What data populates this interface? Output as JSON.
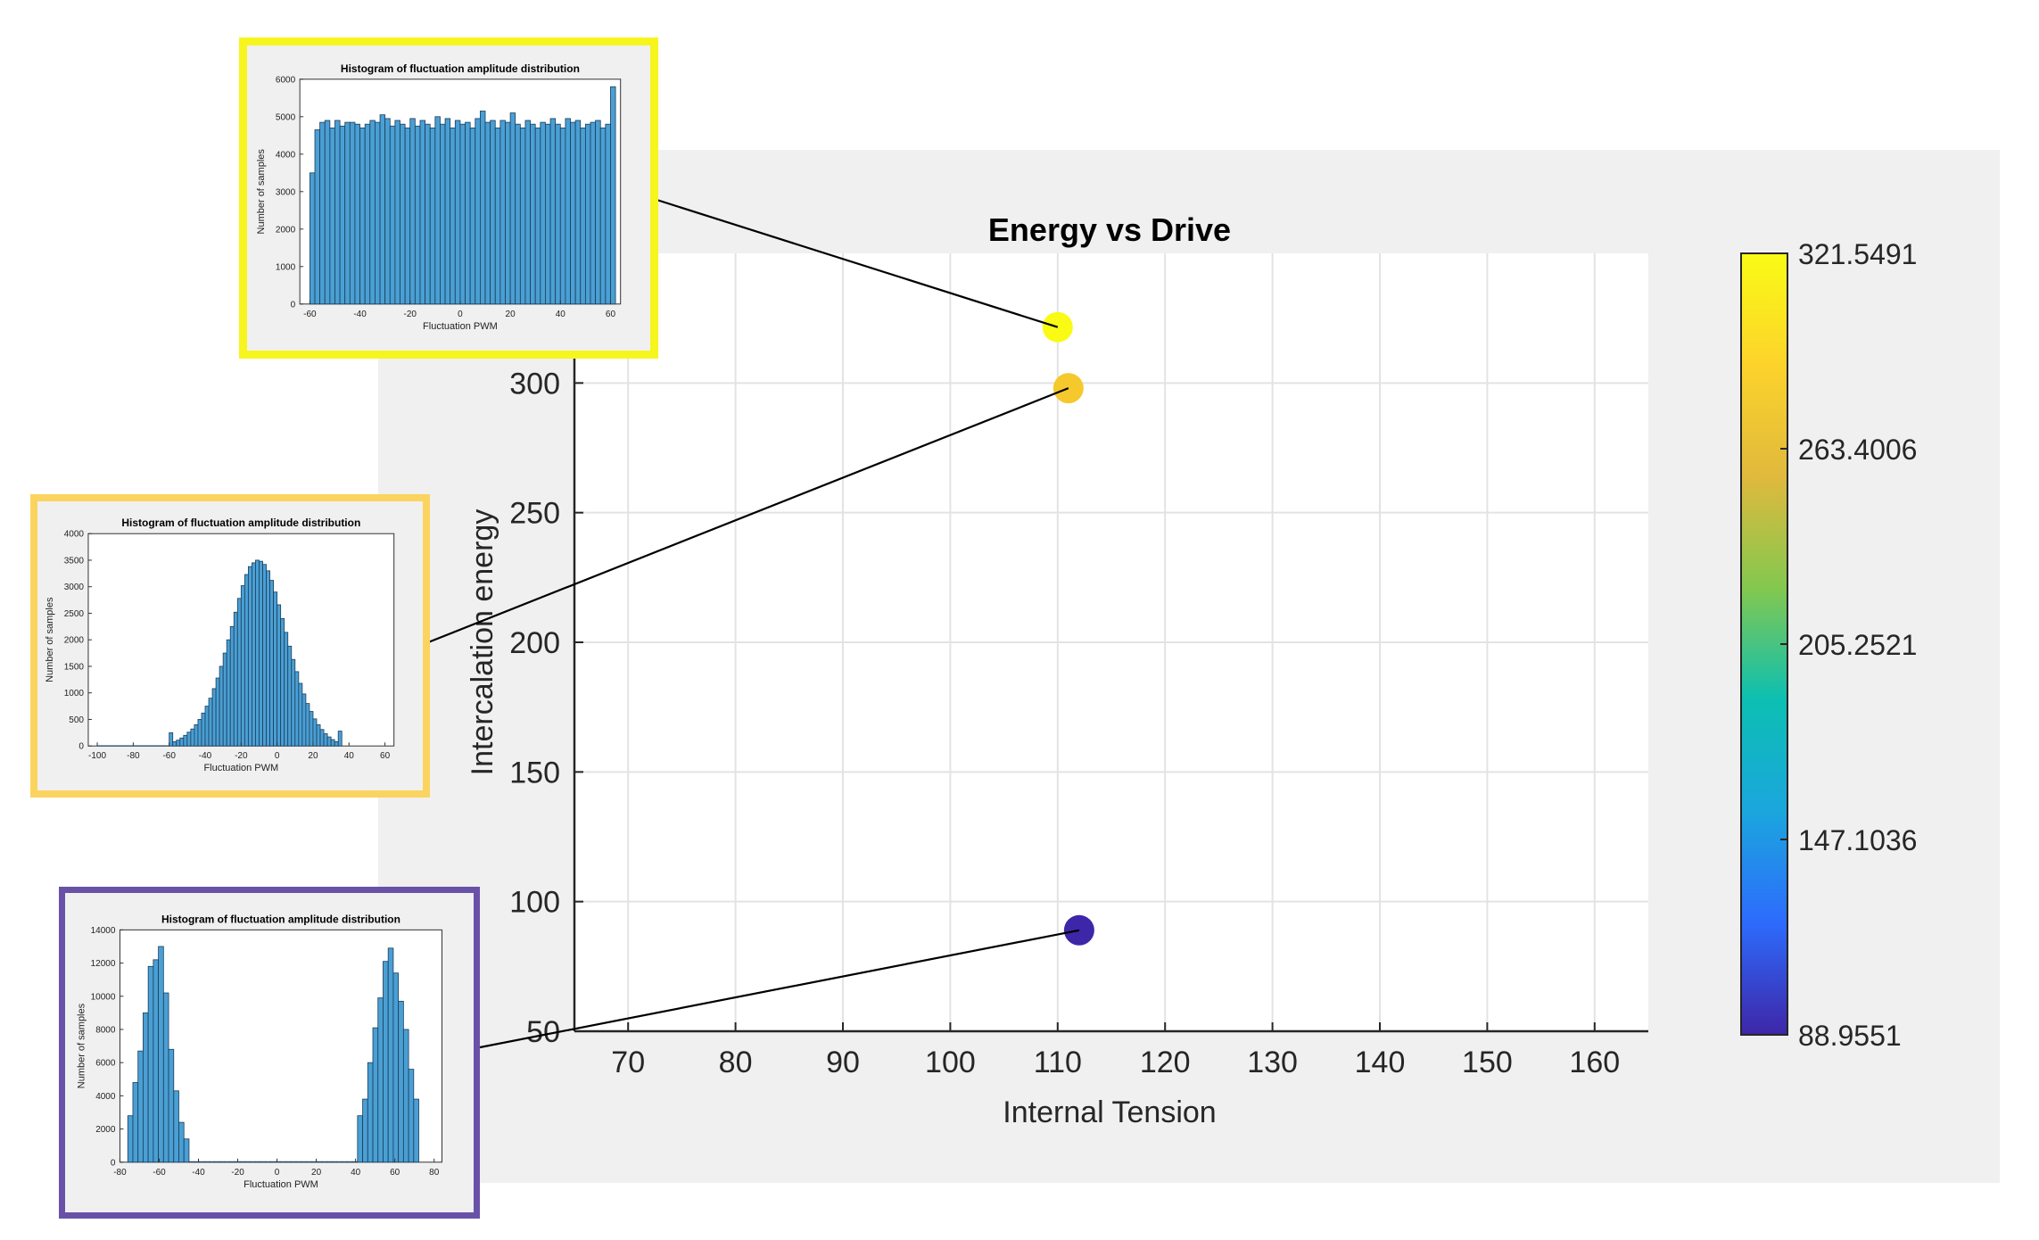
{
  "colors": {
    "panel_bg": "#f0f0f0",
    "grid": "#e3e3e3",
    "axis": "#262626",
    "bar_fill": "#4a9fd3",
    "bar_stroke": "#1a3d5c",
    "colormap": [
      "#3e26a8",
      "#2d6bfc",
      "#1ba6de",
      "#0cbfb2",
      "#83c84f",
      "#e0b93d",
      "#fcd32b",
      "#f9fb15"
    ]
  },
  "chart_data": [
    {
      "type": "scatter",
      "title": "Energy vs Drive",
      "xlabel": "Internal Tension",
      "ylabel": "Intercalation energy",
      "xlim": [
        65,
        165
      ],
      "ylim": [
        50,
        350
      ],
      "xticks": [
        "70",
        "80",
        "90",
        "100",
        "110",
        "120",
        "130",
        "140",
        "150",
        "160"
      ],
      "yticks": [
        "50",
        "100",
        "150",
        "200",
        "250",
        "300"
      ],
      "grid": true,
      "points": [
        {
          "x": 110,
          "y": 321.5491,
          "color": "#f9fb15"
        },
        {
          "x": 111,
          "y": 298,
          "color": "#f5c92d"
        },
        {
          "x": 112,
          "y": 88.9551,
          "color": "#3e26a8"
        }
      ],
      "colorbar": {
        "position": "right",
        "min": 88.9551,
        "max": 321.5491,
        "tick_labels": [
          "321.5491",
          "263.4006",
          "205.2521",
          "147.1036",
          "88.9551"
        ]
      }
    },
    {
      "type": "bar",
      "title": "Histogram of fluctuation amplitude distribution",
      "xlabel": "Fluctuation PWM",
      "ylabel": "Number of samples",
      "frame_color": "#f7f51e",
      "xlim": [
        -64,
        64
      ],
      "ylim": [
        0,
        6000
      ],
      "xticks": [
        "-60",
        "-40",
        "-20",
        "0",
        "20",
        "40",
        "60"
      ],
      "yticks": [
        "0",
        "1000",
        "2000",
        "3000",
        "4000",
        "5000",
        "6000"
      ],
      "bin_start": -60,
      "bin_width": 2,
      "values": [
        3500,
        4650,
        4850,
        4900,
        4700,
        4900,
        4750,
        4850,
        4850,
        4800,
        4700,
        4800,
        4900,
        4850,
        5050,
        4950,
        4750,
        4900,
        4800,
        4700,
        4950,
        4750,
        4900,
        4800,
        4700,
        5000,
        4800,
        4950,
        4700,
        4900,
        4800,
        4850,
        4700,
        4950,
        5150,
        4850,
        4900,
        4700,
        4900,
        4850,
        5100,
        4800,
        4700,
        4900,
        4800,
        4700,
        4850,
        4800,
        4950,
        4800,
        4700,
        4950,
        4850,
        4900,
        4700,
        4800,
        4850,
        4900,
        4700,
        4800,
        5800
      ]
    },
    {
      "type": "bar",
      "title": "Histogram of fluctuation amplitude distribution",
      "xlabel": "Fluctuation PWM",
      "ylabel": "Number of samples",
      "frame_color": "#fbd45f",
      "xlim": [
        -105,
        65
      ],
      "ylim": [
        0,
        4000
      ],
      "xticks": [
        "-100",
        "-80",
        "-60",
        "-40",
        "-20",
        "0",
        "20",
        "40",
        "60"
      ],
      "yticks": [
        "0",
        "500",
        "1000",
        "1500",
        "2000",
        "2500",
        "3000",
        "3500",
        "4000"
      ],
      "bin_start": -100,
      "bin_width": 2,
      "values": [
        5,
        5,
        5,
        5,
        5,
        5,
        5,
        5,
        5,
        5,
        5,
        5,
        5,
        5,
        5,
        5,
        5,
        5,
        5,
        5,
        250,
        80,
        110,
        150,
        200,
        260,
        320,
        400,
        500,
        620,
        750,
        900,
        1080,
        1280,
        1500,
        1750,
        2000,
        2250,
        2520,
        2780,
        3020,
        3230,
        3380,
        3450,
        3500,
        3480,
        3420,
        3300,
        3120,
        2900,
        2660,
        2400,
        2140,
        1880,
        1630,
        1400,
        1180,
        980,
        800,
        650,
        510,
        400,
        310,
        230,
        170,
        120,
        80,
        280
      ]
    },
    {
      "type": "bar",
      "title": "Histogram of fluctuation amplitude distribution",
      "xlabel": "Fluctuation PWM",
      "ylabel": "Number of samples",
      "frame_color": "#6951a8",
      "xlim": [
        -80,
        84
      ],
      "ylim": [
        0,
        14000
      ],
      "xticks": [
        "-80",
        "-60",
        "-40",
        "-20",
        "0",
        "20",
        "40",
        "60",
        "80"
      ],
      "yticks": [
        "0",
        "2000",
        "4000",
        "6000",
        "8000",
        "10000",
        "12000",
        "14000"
      ],
      "bin_start": -76,
      "bin_width": 2.6,
      "values": [
        2800,
        4800,
        6700,
        9000,
        11800,
        12200,
        13000,
        10200,
        6800,
        4300,
        2400,
        1400,
        30,
        30,
        30,
        30,
        30,
        30,
        30,
        30,
        30,
        30,
        30,
        30,
        30,
        30,
        30,
        30,
        30,
        30,
        30,
        30,
        30,
        30,
        30,
        30,
        30,
        30,
        30,
        30,
        30,
        30,
        30,
        30,
        30,
        2800,
        3800,
        6000,
        8100,
        9900,
        12100,
        12900,
        11400,
        9700,
        8000,
        5600,
        3800
      ]
    }
  ]
}
